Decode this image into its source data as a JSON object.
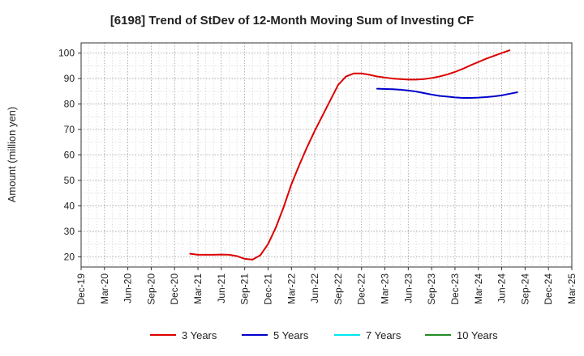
{
  "chart_data": {
    "type": "line",
    "title": "[6198]  Trend of StDev of 12-Month Moving Sum of Investing CF",
    "ylabel": "Amount (million yen)",
    "xlabel": "",
    "ylim": [
      16,
      104
    ],
    "yticks": [
      20,
      30,
      40,
      50,
      60,
      70,
      80,
      90,
      100
    ],
    "categories": [
      "Dec-19",
      "Mar-20",
      "Jun-20",
      "Sep-20",
      "Dec-20",
      "Mar-21",
      "Jun-21",
      "Sep-21",
      "Dec-21",
      "Mar-22",
      "Jun-22",
      "Sep-22",
      "Dec-22",
      "Mar-23",
      "Jun-23",
      "Sep-23",
      "Dec-23",
      "Mar-24",
      "Jun-24",
      "Sep-24",
      "Dec-24",
      "Mar-25"
    ],
    "grid": true,
    "legend_position": "bottom",
    "series": [
      {
        "name": "3 Years",
        "color": "#dd0000",
        "points": [
          [
            "Feb-21",
            21.2
          ],
          [
            "Mar-21",
            20.8
          ],
          [
            "Apr-21",
            20.8
          ],
          [
            "May-21",
            20.8
          ],
          [
            "Jun-21",
            20.9
          ],
          [
            "Jul-21",
            20.8
          ],
          [
            "Aug-21",
            20.3
          ],
          [
            "Sep-21",
            19.2
          ],
          [
            "Oct-21",
            18.9
          ],
          [
            "Nov-21",
            20.6
          ],
          [
            "Dec-21",
            25.0
          ],
          [
            "Jan-22",
            31.5
          ],
          [
            "Feb-22",
            39.5
          ],
          [
            "Mar-22",
            48.5
          ],
          [
            "Apr-22",
            56.0
          ],
          [
            "May-22",
            63.0
          ],
          [
            "Jun-22",
            69.5
          ],
          [
            "Jul-22",
            75.5
          ],
          [
            "Aug-22",
            81.5
          ],
          [
            "Sep-22",
            87.5
          ],
          [
            "Oct-22",
            90.8
          ],
          [
            "Nov-22",
            92.0
          ],
          [
            "Dec-22",
            92.0
          ],
          [
            "Jan-23",
            91.5
          ],
          [
            "Feb-23",
            90.8
          ],
          [
            "Mar-23",
            90.4
          ],
          [
            "Apr-23",
            90.0
          ],
          [
            "May-23",
            89.8
          ],
          [
            "Jun-23",
            89.6
          ],
          [
            "Jul-23",
            89.6
          ],
          [
            "Aug-23",
            89.8
          ],
          [
            "Sep-23",
            90.2
          ],
          [
            "Oct-23",
            90.8
          ],
          [
            "Nov-23",
            91.6
          ],
          [
            "Dec-23",
            92.6
          ],
          [
            "Jan-24",
            93.8
          ],
          [
            "Feb-24",
            95.2
          ],
          [
            "Mar-24",
            96.5
          ],
          [
            "Apr-24",
            97.8
          ],
          [
            "May-24",
            98.9
          ],
          [
            "Jun-24",
            100.0
          ],
          [
            "Jul-24",
            101.1
          ]
        ]
      },
      {
        "name": "5 Years",
        "color": "#0000cc",
        "points": [
          [
            "Feb-23",
            86.0
          ],
          [
            "Mar-23",
            85.9
          ],
          [
            "Apr-23",
            85.8
          ],
          [
            "May-23",
            85.6
          ],
          [
            "Jun-23",
            85.3
          ],
          [
            "Jul-23",
            84.9
          ],
          [
            "Aug-23",
            84.3
          ],
          [
            "Sep-23",
            83.7
          ],
          [
            "Oct-23",
            83.2
          ],
          [
            "Nov-23",
            82.9
          ],
          [
            "Dec-23",
            82.6
          ],
          [
            "Jan-24",
            82.4
          ],
          [
            "Feb-24",
            82.4
          ],
          [
            "Mar-24",
            82.5
          ],
          [
            "Apr-24",
            82.7
          ],
          [
            "May-24",
            83.0
          ],
          [
            "Jun-24",
            83.4
          ],
          [
            "Jul-24",
            84.0
          ],
          [
            "Aug-24",
            84.6
          ]
        ]
      },
      {
        "name": "7 Years",
        "color": "#00e5ee",
        "points": []
      },
      {
        "name": "10 Years",
        "color": "#228b22",
        "points": []
      }
    ]
  }
}
